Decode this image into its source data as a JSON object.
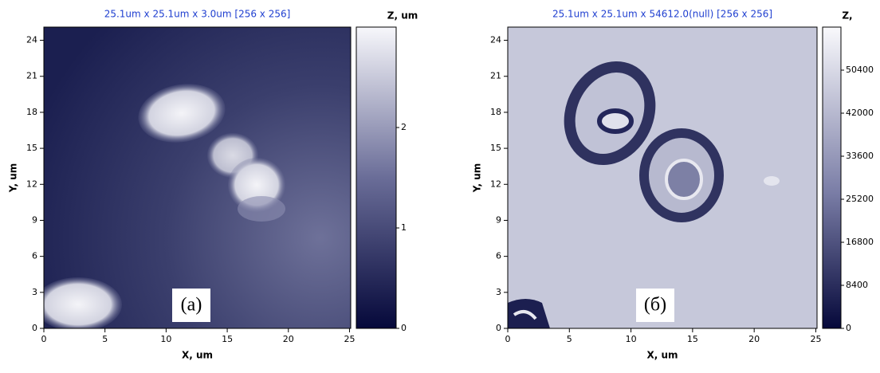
{
  "chart_data": [
    {
      "type": "image",
      "title": "25.1um x 25.1um x 3.0um [256 x 256]",
      "x_label": "X, um",
      "y_label": "Y, um",
      "z_label": "Z, um",
      "panel_label": "(a)",
      "xlim": [
        0,
        25.1
      ],
      "xticks": [
        0,
        5,
        10,
        15,
        20,
        25
      ],
      "ylim": [
        0,
        25.1
      ],
      "yticks": [
        0,
        3,
        6,
        9,
        12,
        15,
        18,
        21,
        24
      ],
      "zlim": [
        0,
        3.0
      ],
      "zticks": [
        0,
        1,
        2
      ]
    },
    {
      "type": "image",
      "title": "25.1um x 25.1um x 54612.0(null) [256 x 256]",
      "x_label": "X, um",
      "y_label": "Y, um",
      "z_label": "Z,",
      "panel_label": "(б)",
      "xlim": [
        0,
        25.1
      ],
      "xticks": [
        0,
        5,
        10,
        15,
        20,
        25
      ],
      "ylim": [
        0,
        25.1
      ],
      "yticks": [
        0,
        3,
        6,
        9,
        12,
        15,
        18,
        21,
        24
      ],
      "zlim": [
        0,
        58800
      ],
      "zticks": [
        0,
        8400,
        16800,
        25200,
        33600,
        42000,
        50400
      ]
    }
  ]
}
